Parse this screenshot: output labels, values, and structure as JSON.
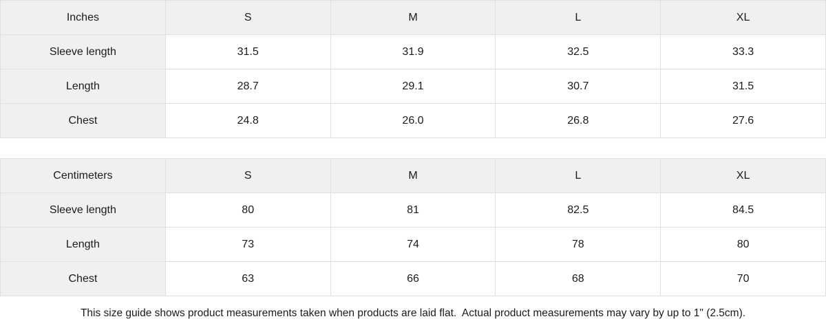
{
  "colors": {
    "cell_shade": "#f0f0f0",
    "border": "#e0e0e0",
    "text": "#1b1b1b",
    "background": "#ffffff"
  },
  "tables": [
    {
      "unit_label": "Inches",
      "columns": [
        "S",
        "M",
        "L",
        "XL"
      ],
      "rows": [
        {
          "label": "Sleeve length",
          "values": [
            "31.5",
            "31.9",
            "32.5",
            "33.3"
          ]
        },
        {
          "label": "Length",
          "values": [
            "28.7",
            "29.1",
            "30.7",
            "31.5"
          ]
        },
        {
          "label": "Chest",
          "values": [
            "24.8",
            "26.0",
            "26.8",
            "27.6"
          ]
        }
      ]
    },
    {
      "unit_label": "Centimeters",
      "columns": [
        "S",
        "M",
        "L",
        "XL"
      ],
      "rows": [
        {
          "label": "Sleeve length",
          "values": [
            "80",
            "81",
            "82.5",
            "84.5"
          ]
        },
        {
          "label": "Length",
          "values": [
            "73",
            "74",
            "78",
            "80"
          ]
        },
        {
          "label": "Chest",
          "values": [
            "63",
            "66",
            "68",
            "70"
          ]
        }
      ]
    }
  ],
  "footer": {
    "note": "This size guide shows product measurements taken when products are laid flat.  Actual product measurements may vary by up to 1\" (2.5cm)."
  }
}
